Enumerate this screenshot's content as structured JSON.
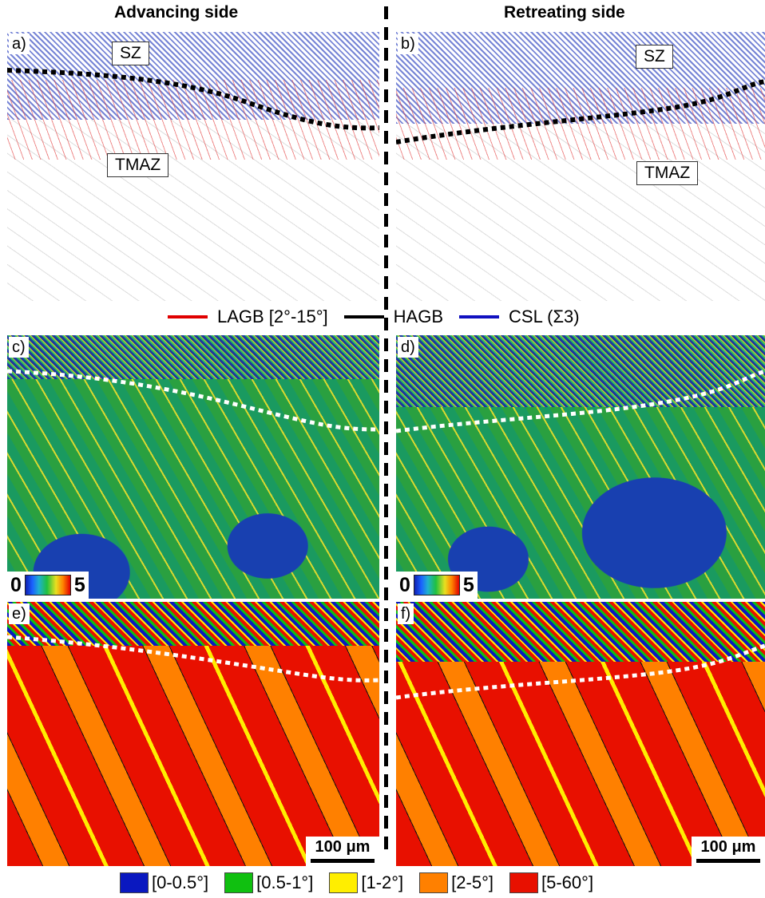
{
  "headers": {
    "advancing": "Advancing side",
    "retreating": "Retreating side"
  },
  "panels": {
    "a": {
      "label": "a)",
      "zones": [
        "SZ",
        "TMAZ"
      ]
    },
    "b": {
      "label": "b)",
      "zones": [
        "SZ",
        "TMAZ"
      ]
    },
    "c": {
      "label": "c)"
    },
    "d": {
      "label": "d)"
    },
    "e": {
      "label": "e)"
    },
    "f": {
      "label": "f)"
    }
  },
  "boundary_legend": [
    {
      "label": "LAGB [2°-15°]",
      "color": "#e00000"
    },
    {
      "label": "HAGB",
      "color": "#000000"
    },
    {
      "label": "CSL (Σ3)",
      "color": "#1010c0"
    }
  ],
  "kam_colorbar": {
    "min": "0",
    "max": "5"
  },
  "scale_bar": "100 μm",
  "gos_legend": [
    {
      "label": "[0-0.5°]",
      "color": "#0a18c0"
    },
    {
      "label": "[0.5-1°]",
      "color": "#10c010"
    },
    {
      "label": "[1-2°]",
      "color": "#ffee00"
    },
    {
      "label": "[2-5°]",
      "color": "#ff8000"
    },
    {
      "label": "[5-60°]",
      "color": "#e81000"
    }
  ]
}
